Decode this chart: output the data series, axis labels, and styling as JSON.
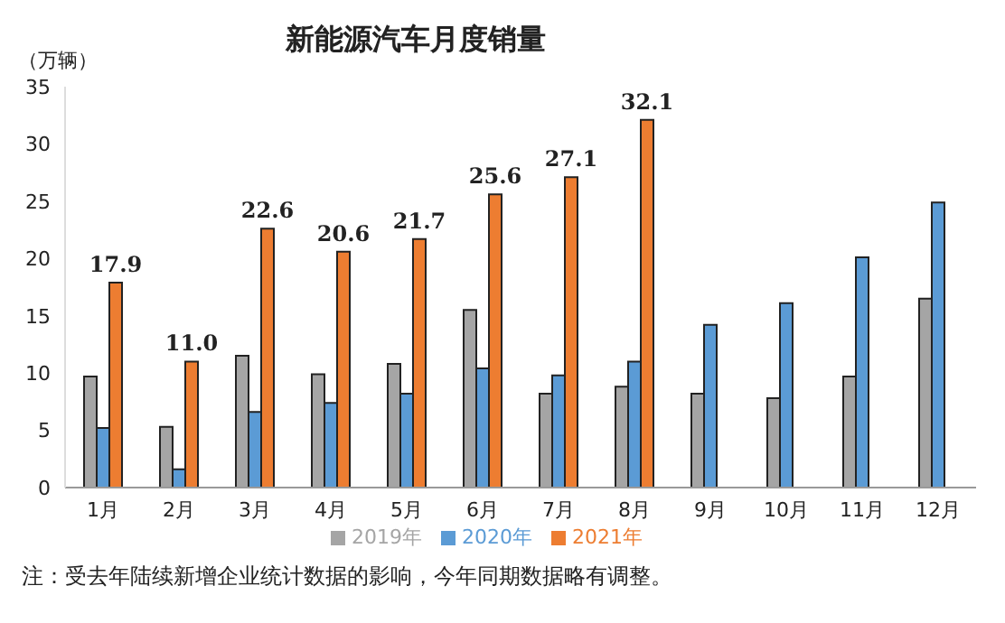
{
  "chart_data": {
    "type": "bar",
    "title": "新能源汽车月度销量",
    "ylabel": "（万辆）",
    "categories": [
      "1月",
      "2月",
      "3月",
      "4月",
      "5月",
      "6月",
      "7月",
      "8月",
      "9月",
      "10月",
      "11月",
      "12月"
    ],
    "series": [
      {
        "name": "2019年",
        "color": "#a5a5a5",
        "values": [
          9.7,
          5.3,
          11.5,
          9.9,
          10.8,
          15.5,
          8.2,
          8.8,
          8.2,
          7.8,
          9.7,
          16.5
        ]
      },
      {
        "name": "2020年",
        "color": "#5b9bd5",
        "values": [
          5.2,
          1.6,
          6.6,
          7.4,
          8.2,
          10.4,
          9.8,
          11.0,
          14.2,
          16.1,
          20.1,
          24.9
        ]
      },
      {
        "name": "2021年",
        "color": "#ed7d31",
        "values": [
          17.9,
          11.0,
          22.6,
          20.6,
          21.7,
          25.6,
          27.1,
          32.1,
          null,
          null,
          null,
          null
        ],
        "value_labels": [
          "17.9",
          "11.0",
          "22.6",
          "20.6",
          "21.7",
          "25.6",
          "27.1",
          "32.1",
          null,
          null,
          null,
          null
        ]
      }
    ],
    "ylim": [
      0,
      35
    ],
    "yticks": [
      0,
      5,
      10,
      15,
      20,
      25,
      30,
      35
    ],
    "grid": false,
    "legend": "bottom",
    "annotations": [
      "注：受去年陆续新增企业统计数据的影响，今年同期数据略有调整。"
    ]
  }
}
